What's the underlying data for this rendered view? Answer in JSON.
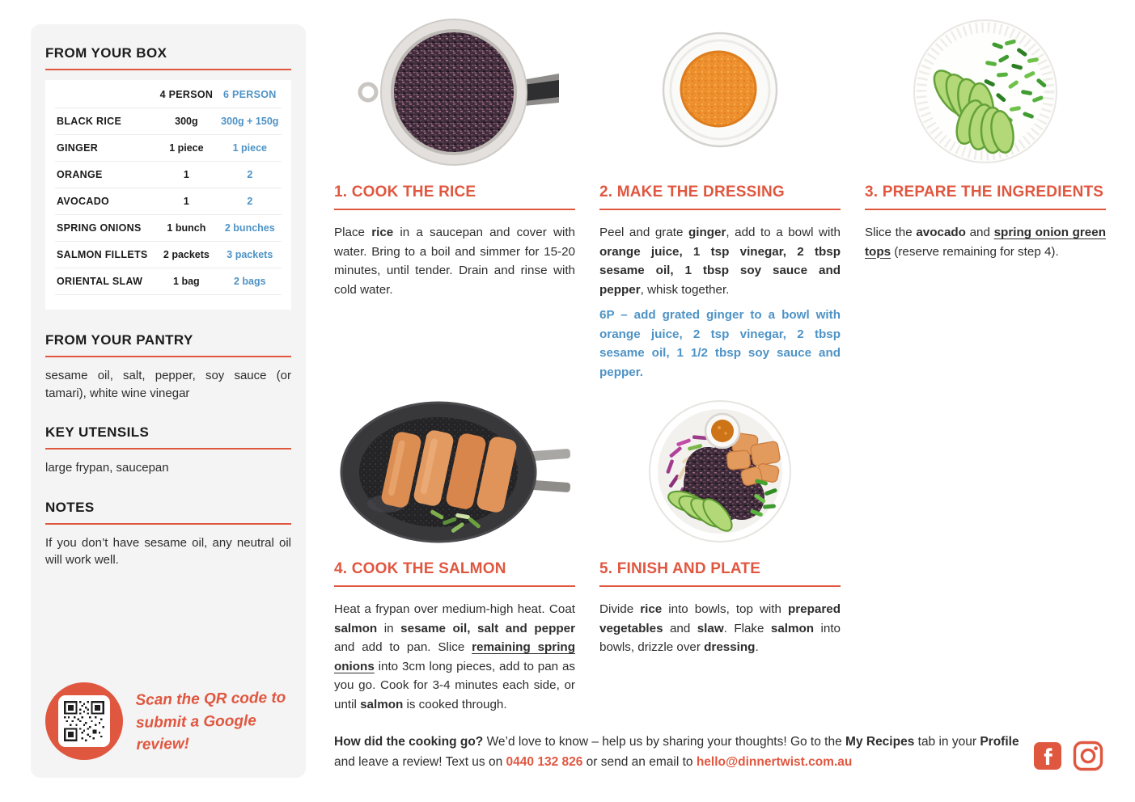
{
  "colors": {
    "accent": "#e05740",
    "blue": "#4e93c6"
  },
  "sidebar": {
    "box_title": "FROM YOUR BOX",
    "table": {
      "col4_header": "4 PERSON",
      "col6_header": "6 PERSON",
      "rows": [
        {
          "name": "BLACK RICE",
          "p4": "300g",
          "p6": "300g + 150g"
        },
        {
          "name": "GINGER",
          "p4": "1 piece",
          "p6": "1 piece"
        },
        {
          "name": "ORANGE",
          "p4": "1",
          "p6": "2"
        },
        {
          "name": "AVOCADO",
          "p4": "1",
          "p6": "2"
        },
        {
          "name": "SPRING ONIONS",
          "p4": "1 bunch",
          "p6": "2 bunches"
        },
        {
          "name": "SALMON FILLETS",
          "p4": "2 packets",
          "p6": "3 packets"
        },
        {
          "name": "ORIENTAL SLAW",
          "p4": "1 bag",
          "p6": "2 bags"
        }
      ]
    },
    "pantry_title": "FROM YOUR PANTRY",
    "pantry_text": "sesame oil, salt, pepper, soy sauce (or tamari), white wine vinegar",
    "utensils_title": "KEY UTENSILS",
    "utensils_text": "large frypan, saucepan",
    "notes_title": "NOTES",
    "notes_text": "If you don’t have sesame oil, any neutral oil will work well.",
    "qr_caption_line1": "Scan the QR code to",
    "qr_caption_line2": "submit a Google review!"
  },
  "steps": [
    {
      "title": "1. COOK THE RICE",
      "body": [
        {
          "t": "Place "
        },
        {
          "t": "rice",
          "b": 1
        },
        {
          "t": " in a saucepan and cover with water. Bring to a boil and simmer for 15-20 minutes, until tender. Drain and rinse with cold water."
        }
      ]
    },
    {
      "title": "2. MAKE THE DRESSING",
      "body": [
        {
          "t": "Peel and grate "
        },
        {
          "t": "ginger",
          "b": 1
        },
        {
          "t": ", add to a bowl with "
        },
        {
          "t": "orange juice, 1 tsp vinegar, 2 tbsp sesame oil, 1 tbsp soy sauce and pepper",
          "b": 1
        },
        {
          "t": ", whisk together."
        }
      ],
      "note": "6P – add grated ginger to a bowl with orange juice, 2 tsp vinegar, 2 tbsp sesame oil, 1 1/2 tbsp soy sauce and pepper."
    },
    {
      "title": "3. PREPARE THE INGREDIENTS",
      "body": [
        {
          "t": "Slice the "
        },
        {
          "t": "avocado",
          "b": 1
        },
        {
          "t": " and "
        },
        {
          "t": "spring onion green tops",
          "b": 1,
          "u": 1
        },
        {
          "t": " (reserve remaining for step 4)."
        }
      ]
    },
    {
      "title": "4. COOK THE SALMON",
      "body": [
        {
          "t": "Heat a frypan over medium-high heat. Coat "
        },
        {
          "t": "salmon",
          "b": 1
        },
        {
          "t": " in "
        },
        {
          "t": "sesame oil, salt and pepper",
          "b": 1
        },
        {
          "t": " and add to pan. Slice "
        },
        {
          "t": "remaining spring onions",
          "b": 1,
          "u": 1
        },
        {
          "t": " into 3cm long pieces, add to pan as you go. Cook for 3-4 minutes each side, or until "
        },
        {
          "t": "salmon",
          "b": 1
        },
        {
          "t": " is cooked through."
        }
      ]
    },
    {
      "title": "5. FINISH AND PLATE",
      "body": [
        {
          "t": "Divide "
        },
        {
          "t": "rice",
          "b": 1
        },
        {
          "t": " into bowls, top with "
        },
        {
          "t": "prepared vegetables",
          "b": 1
        },
        {
          "t": " and "
        },
        {
          "t": "slaw",
          "b": 1
        },
        {
          "t": ". Flake "
        },
        {
          "t": "salmon",
          "b": 1
        },
        {
          "t": " into bowls, drizzle over "
        },
        {
          "t": "dressing",
          "b": 1
        },
        {
          "t": "."
        }
      ]
    }
  ],
  "footer": {
    "segments": [
      {
        "t": "How did the cooking go?",
        "b": 1
      },
      {
        "t": " We’d love to know – help us by sharing your thoughts! Go to the "
      },
      {
        "t": "My Recipes",
        "b": 1
      },
      {
        "t": " tab in your "
      },
      {
        "t": "Profile",
        "b": 1
      },
      {
        "t": " and leave a review! Text us on "
      },
      {
        "t": "0440 132 826",
        "b": 1,
        "c": "accent",
        "n": "phone-link",
        "i": 1
      },
      {
        "t": " or send an email to "
      },
      {
        "t": "hello@dinnertwist.com.au",
        "b": 1,
        "c": "accent",
        "n": "email-link",
        "i": 1
      }
    ]
  }
}
